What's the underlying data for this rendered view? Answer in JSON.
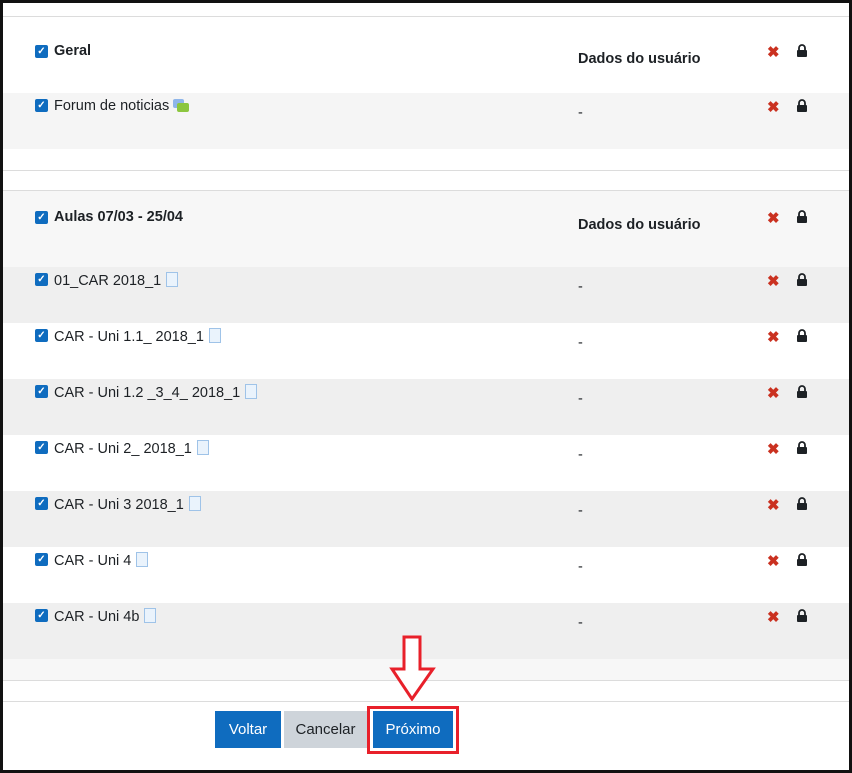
{
  "sections": [
    {
      "title": "Geral",
      "user_data_header": "Dados do usuário",
      "items": [
        {
          "label": "Forum de noticias",
          "icon": "forum-icon",
          "user_data": "-"
        }
      ]
    },
    {
      "title": "Aulas 07/03 - 25/04",
      "user_data_header": "Dados do usuário",
      "items": [
        {
          "label": "01_CAR 2018_1",
          "icon": "file-icon",
          "user_data": "-"
        },
        {
          "label": "CAR - Uni 1.1_ 2018_1",
          "icon": "file-icon",
          "user_data": "-"
        },
        {
          "label": "CAR - Uni 1.2 _3_4_ 2018_1",
          "icon": "file-icon",
          "user_data": "-"
        },
        {
          "label": "CAR - Uni 2_ 2018_1",
          "icon": "file-icon",
          "user_data": "-"
        },
        {
          "label": "CAR - Uni 3 2018_1",
          "icon": "file-icon",
          "user_data": "-"
        },
        {
          "label": "CAR - Uni 4",
          "icon": "file-icon",
          "user_data": "-"
        },
        {
          "label": "CAR - Uni 4b",
          "icon": "file-icon",
          "user_data": "-"
        }
      ]
    }
  ],
  "buttons": {
    "back": "Voltar",
    "cancel": "Cancelar",
    "next": "Próximo"
  },
  "colors": {
    "primary": "#0f6cbf",
    "secondary": "#ced4da",
    "remove": "#ca3120",
    "highlight": "#e8202a"
  }
}
